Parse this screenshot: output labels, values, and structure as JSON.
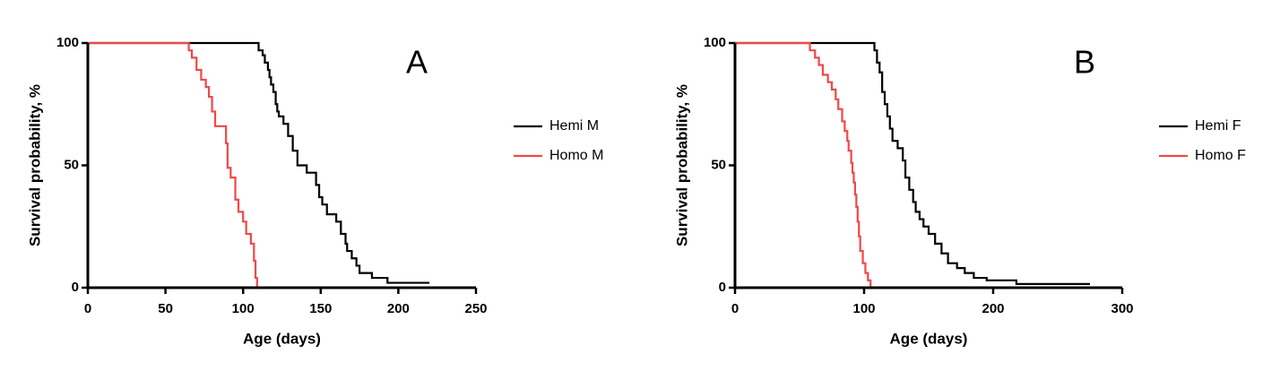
{
  "chart_data": [
    {
      "type": "line",
      "step": true,
      "label": "A",
      "xlabel": "Age (days)",
      "ylabel": "Survival probability, %",
      "xlim": [
        0,
        250
      ],
      "xticks": [
        0,
        50,
        100,
        150,
        200,
        250
      ],
      "ylim": [
        0,
        100
      ],
      "yticks": [
        0,
        50,
        100
      ],
      "series": [
        {
          "name": "Hemi M",
          "color": "#000000",
          "x": [
            0,
            110,
            112.6,
            114,
            116,
            117,
            118,
            119.5,
            121,
            122,
            123,
            126,
            129,
            132,
            135,
            141,
            147,
            149,
            151,
            154,
            160,
            163,
            166,
            167,
            170,
            173,
            175,
            183,
            193,
            220
          ],
          "values": [
            100,
            97,
            95,
            92,
            89,
            86,
            83,
            80,
            75,
            72,
            70,
            67,
            62,
            56,
            50,
            47,
            42,
            37,
            34,
            30,
            27,
            22,
            18,
            15,
            12,
            9,
            6,
            4,
            2,
            2
          ]
        },
        {
          "name": "Homo M",
          "color": "#f04848",
          "x": [
            0,
            65,
            67,
            70,
            73,
            76,
            78,
            80,
            82,
            89,
            90,
            92,
            95,
            97,
            100,
            102,
            105,
            107,
            108,
            109
          ],
          "values": [
            100,
            97,
            94,
            89,
            85,
            82,
            78,
            72,
            66,
            59,
            49,
            45,
            36,
            31,
            27,
            22,
            18,
            11,
            4,
            0
          ]
        }
      ]
    },
    {
      "type": "line",
      "step": true,
      "label": "B",
      "xlabel": "Age (days)",
      "ylabel": "Survival probability, %",
      "xlim": [
        0,
        300
      ],
      "xticks": [
        0,
        100,
        200,
        300
      ],
      "ylim": [
        0,
        100
      ],
      "yticks": [
        0,
        50,
        100
      ],
      "series": [
        {
          "name": "Hemi F",
          "color": "#000000",
          "x": [
            0,
            108,
            110,
            112,
            114,
            116,
            118,
            120,
            122,
            126,
            130,
            132,
            135,
            138,
            140,
            143,
            146,
            150,
            155,
            160,
            165,
            172,
            178,
            185,
            195,
            218,
            275
          ],
          "values": [
            100,
            97,
            92,
            88,
            80,
            75,
            70,
            65,
            60,
            57,
            52,
            45,
            40,
            35,
            31,
            28,
            25,
            22,
            18,
            14,
            10,
            8,
            6,
            4,
            3,
            1.5,
            1.5
          ]
        },
        {
          "name": "Homo F",
          "color": "#f04848",
          "x": [
            0,
            58,
            62,
            65,
            68,
            72,
            75,
            78,
            80,
            83,
            85,
            87,
            88,
            90,
            91,
            92,
            93,
            94,
            95,
            96,
            97,
            99,
            101,
            103,
            105
          ],
          "values": [
            100,
            97,
            94,
            91,
            87,
            84,
            81,
            77,
            73,
            68,
            64,
            60,
            56,
            51,
            47,
            43,
            38,
            33,
            27,
            21,
            15,
            10,
            6,
            3,
            0
          ]
        }
      ]
    }
  ]
}
